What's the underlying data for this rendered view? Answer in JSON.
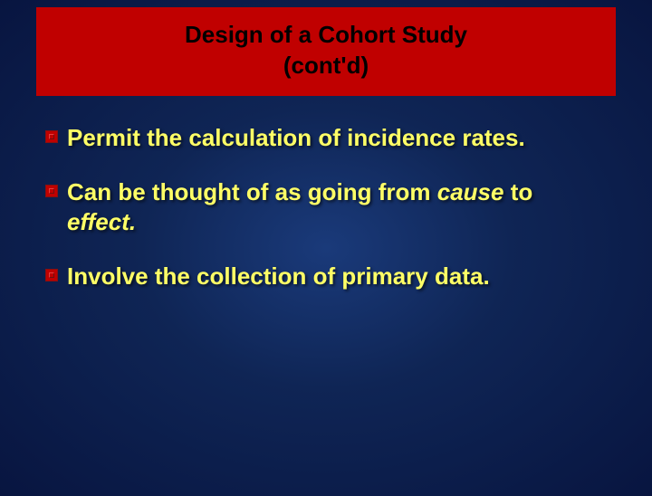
{
  "slide": {
    "title_box": {
      "background_color": "#c00000",
      "text_color": "#000000",
      "font_size": 26,
      "font_weight": "bold",
      "lines": [
        "Design of a Cohort Study",
        "(cont'd)"
      ]
    },
    "background": {
      "gradient_center": "#1a3a7a",
      "gradient_mid": "#0f2555",
      "gradient_edge": "#081540"
    },
    "bullets": {
      "icon_color": "#c00000",
      "text_color": "#ffff66",
      "font_size": 26,
      "font_weight": "bold",
      "items": [
        {
          "segments": [
            {
              "text": "Permit the calculation of incidence rates.",
              "italic": false
            }
          ]
        },
        {
          "segments": [
            {
              "text": "Can be thought of as going from ",
              "italic": false
            },
            {
              "text": "cause",
              "italic": true
            },
            {
              "text": " to ",
              "italic": false
            },
            {
              "text": "effect.",
              "italic": true
            }
          ]
        },
        {
          "segments": [
            {
              "text": "Involve the collection of primary data.",
              "italic": false
            }
          ]
        }
      ]
    }
  }
}
